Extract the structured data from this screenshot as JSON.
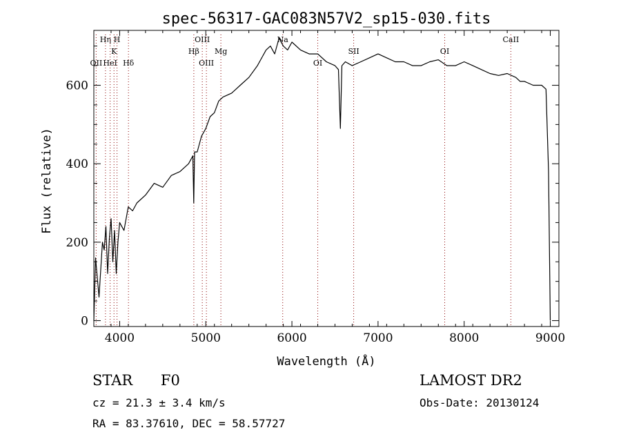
{
  "chart_data": {
    "type": "line",
    "title": "spec-56317-GAC083N57V2_sp15-030.fits",
    "xlabel": "Wavelength (Å)",
    "ylabel": "Flux (relative)",
    "xlim": [
      3700,
      9100
    ],
    "ylim": [
      -15,
      740
    ],
    "x_ticks": [
      4000,
      5000,
      6000,
      7000,
      8000,
      9000
    ],
    "y_ticks": [
      0,
      200,
      400,
      600
    ],
    "grid": false,
    "line_color": "#000000",
    "marker_color": "#8b0000",
    "series": [
      {
        "x": [
          3700,
          3720,
          3740,
          3760,
          3780,
          3800,
          3820,
          3840,
          3860,
          3880,
          3900,
          3920,
          3940,
          3960,
          3980,
          4000,
          4050,
          4100,
          4150,
          4200,
          4300,
          4400,
          4500,
          4600,
          4700,
          4800,
          4850,
          4860,
          4870,
          4900,
          4950,
          5000,
          5050,
          5100,
          5150,
          5200,
          5300,
          5400,
          5500,
          5600,
          5700,
          5750,
          5800,
          5850,
          5900,
          5950,
          6000,
          6100,
          6200,
          6300,
          6400,
          6500,
          6540,
          6563,
          6580,
          6620,
          6700,
          6800,
          6900,
          7000,
          7100,
          7200,
          7300,
          7400,
          7500,
          7600,
          7700,
          7800,
          7900,
          8000,
          8100,
          8200,
          8300,
          8400,
          8500,
          8600,
          8650,
          8700,
          8800,
          8900,
          8950,
          8980,
          9000
        ],
        "y": [
          0,
          160,
          110,
          60,
          130,
          200,
          180,
          240,
          120,
          210,
          260,
          150,
          230,
          120,
          200,
          250,
          230,
          290,
          280,
          300,
          320,
          350,
          340,
          370,
          380,
          400,
          420,
          300,
          430,
          430,
          470,
          490,
          520,
          530,
          560,
          570,
          580,
          600,
          620,
          650,
          690,
          700,
          680,
          720,
          700,
          690,
          710,
          690,
          680,
          680,
          660,
          650,
          640,
          490,
          650,
          660,
          650,
          660,
          670,
          680,
          670,
          660,
          660,
          650,
          650,
          660,
          665,
          650,
          650,
          660,
          650,
          640,
          630,
          625,
          630,
          620,
          610,
          610,
          600,
          600,
          590,
          380,
          0
        ]
      }
    ],
    "line_markers": [
      {
        "label": "OII",
        "x": 3727,
        "row": 3
      },
      {
        "label": "Hη",
        "x": 3835,
        "row": 1
      },
      {
        "label": "HeI",
        "x": 3889,
        "row": 3
      },
      {
        "label": "K",
        "x": 3934,
        "row": 2
      },
      {
        "label": "H",
        "x": 3969,
        "row": 1
      },
      {
        "label": "Hδ",
        "x": 4102,
        "row": 3
      },
      {
        "label": "Hβ",
        "x": 4861,
        "row": 2
      },
      {
        "label": "OIII",
        "x": 4959,
        "row": 1
      },
      {
        "label": "OIII",
        "x": 5007,
        "row": 3
      },
      {
        "label": "Mg",
        "x": 5175,
        "row": 2
      },
      {
        "label": "Na",
        "x": 5893,
        "row": 1
      },
      {
        "label": "OI",
        "x": 6300,
        "row": 3
      },
      {
        "label": "OI",
        "x": 7774,
        "row": 2
      },
      {
        "label": "SII",
        "x": 6717,
        "row": 2
      },
      {
        "label": "CaII",
        "x": 8542,
        "row": 1
      }
    ]
  },
  "info": {
    "class_label": "STAR",
    "subclass_label": "F0",
    "survey": "LAMOST DR2",
    "cz": "cz = 21.3 ± 3.4 km/s",
    "obs_date": "Obs-Date: 20130124",
    "coords": "RA =  83.37610, DEC =  58.57727"
  }
}
